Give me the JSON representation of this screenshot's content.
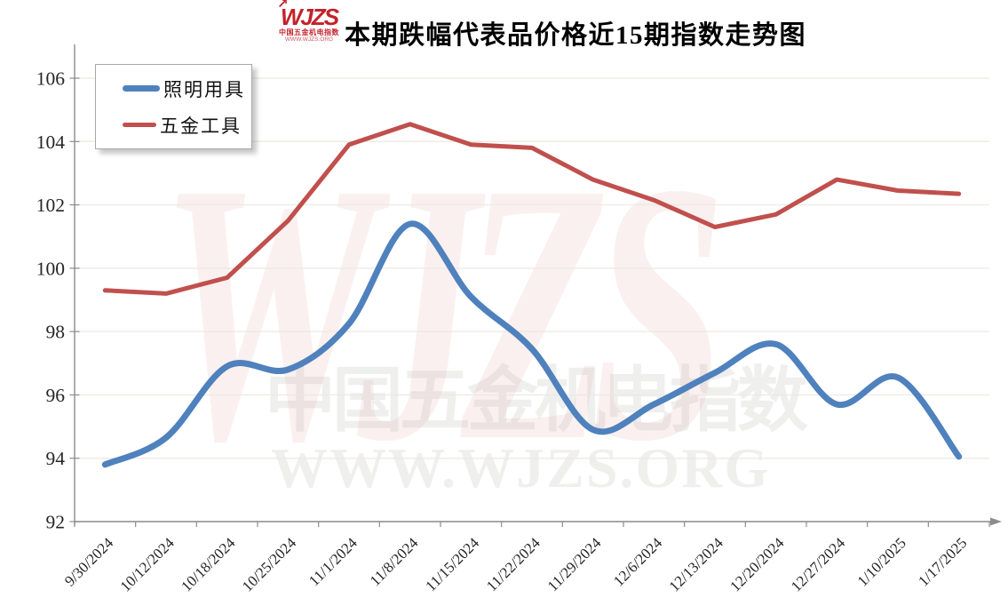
{
  "header": {
    "title": "本期跌幅代表品价格近15期指数走势图",
    "logo": {
      "brand": "WJZS",
      "sub": "中国五金机电指数",
      "url": "WWW.WJZS.ORG"
    }
  },
  "icons": {
    "logo_arrow": "↗"
  },
  "legend": {
    "position": "top-left",
    "items": [
      {
        "label": "照明用具",
        "color": "#4F81BD",
        "thickness": 7
      },
      {
        "label": "五金工具",
        "color": "#C0504D",
        "thickness": 5
      }
    ]
  },
  "watermark": {
    "logo_text": "WJZS",
    "line1": "中国五金机电指数",
    "line2": "WWW.WJZS.ORG"
  },
  "colors": {
    "series_blue": "#4F81BD",
    "series_red": "#C0504D",
    "gridline": "#ebe9df",
    "axis": "#8c8c8c",
    "tick_label": "#262626",
    "logo_red": "#c3232a",
    "watermark_red": "rgba(192,80,77,0.085)",
    "watermark_gray": "rgba(164,164,158,0.18)"
  },
  "chart_data": {
    "type": "line",
    "title": "本期跌幅代表品价格近15期指数走势图",
    "xlabel": "",
    "ylabel": "",
    "ylim": [
      92,
      106
    ],
    "ytick_step": 2,
    "grid": true,
    "legend_position": "top-left",
    "categories": [
      "9/30/2024",
      "10/12/2024",
      "10/18/2024",
      "10/25/2024",
      "11/1/2024",
      "11/8/2024",
      "11/15/2024",
      "11/22/2024",
      "11/29/2024",
      "12/6/2024",
      "12/13/2024",
      "12/20/2024",
      "12/27/2024",
      "1/10/2025",
      "1/17/2025"
    ],
    "series": [
      {
        "name": "照明用具",
        "color": "#4F81BD",
        "width": 7,
        "smooth": true,
        "values": [
          93.8,
          94.65,
          96.9,
          96.8,
          98.25,
          101.4,
          99.1,
          97.45,
          94.9,
          95.7,
          96.7,
          97.6,
          95.7,
          96.55,
          94.05
        ]
      },
      {
        "name": "五金工具",
        "color": "#C0504D",
        "width": 5,
        "smooth": false,
        "values": [
          99.3,
          99.2,
          99.7,
          101.5,
          103.9,
          104.55,
          103.9,
          103.8,
          102.8,
          102.15,
          101.3,
          101.7,
          102.8,
          102.45,
          102.35
        ]
      }
    ]
  }
}
